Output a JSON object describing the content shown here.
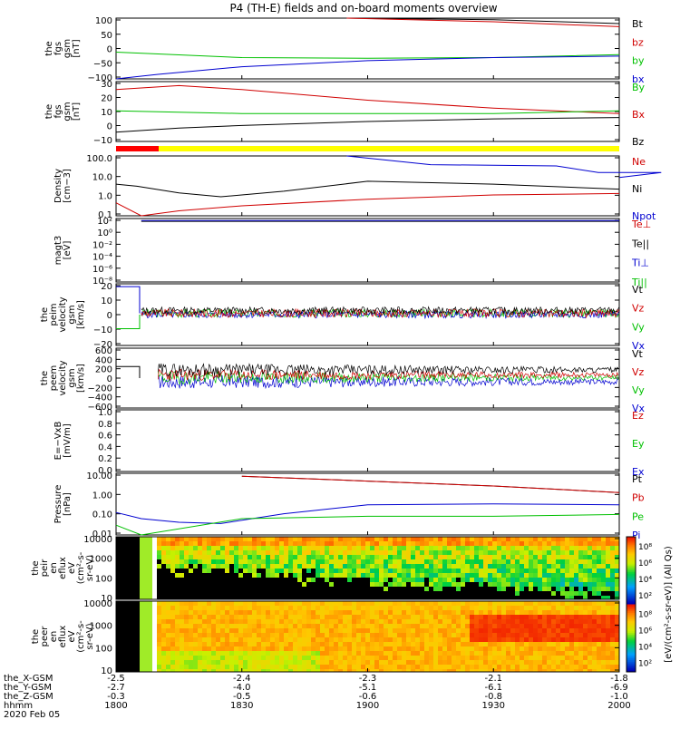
{
  "title": "P4 (TH-E) fields and on-board moments overview",
  "colors": {
    "black": "#000000",
    "red": "#d00000",
    "green": "#00c000",
    "blue": "#0000d0",
    "yellow": "#ffff00",
    "barRed": "#ff0000"
  },
  "panels": [
    {
      "id": "fgs-gsm",
      "ylabel": [
        "the",
        "fgs",
        "gsm",
        "[nT]"
      ],
      "yticks": [
        "100",
        "50",
        "0",
        "−50",
        "−100"
      ],
      "legend": [
        {
          "text": "Bt",
          "color": "black"
        },
        {
          "text": "bz",
          "color": "red"
        },
        {
          "text": "by",
          "color": "green"
        },
        {
          "text": "bx",
          "color": "blue"
        }
      ]
    },
    {
      "id": "fgs-gse",
      "ylabel": [
        "the",
        "fgs",
        "gsm",
        "[nT]"
      ],
      "yticks": [
        "30",
        "20",
        "10",
        "0",
        "−10"
      ],
      "legend": [
        {
          "text": "By",
          "color": "green"
        },
        {
          "text": "Bx",
          "color": "red"
        },
        {
          "text": "Bz",
          "color": "black"
        }
      ]
    },
    {
      "id": "density",
      "ylabel": [
        "Density",
        "[cm−3]"
      ],
      "yticks": [
        "100.0",
        "10.0",
        "1.0",
        "0.1"
      ],
      "legend": [
        {
          "text": "Ne",
          "color": "red"
        },
        {
          "text": "Ni",
          "color": "black"
        },
        {
          "text": "Npot",
          "color": "blue"
        }
      ]
    },
    {
      "id": "temperature",
      "ylabel": [
        "magt3",
        "[eV]"
      ],
      "yticks": [
        "10²",
        "10⁰",
        "10⁻²",
        "10⁻⁴",
        "10⁻⁶",
        "10⁻⁸"
      ],
      "legend": [
        {
          "text": "Te⊥",
          "color": "red"
        },
        {
          "text": "Te||",
          "color": "black"
        },
        {
          "text": "Ti⊥",
          "color": "blue"
        },
        {
          "text": "Ti||",
          "color": "green"
        }
      ]
    },
    {
      "id": "peim-velocity",
      "ylabel": [
        "the",
        "peim",
        "velocity",
        "gsm",
        "[km/s]"
      ],
      "yticks": [
        "20",
        "10",
        "0",
        "−10",
        "−20"
      ],
      "legend": [
        {
          "text": "Vt",
          "color": "black"
        },
        {
          "text": "Vz",
          "color": "red"
        },
        {
          "text": "Vy",
          "color": "green"
        },
        {
          "text": "Vx",
          "color": "blue"
        }
      ]
    },
    {
      "id": "peem-velocity",
      "ylabel": [
        "the",
        "peem",
        "velocity",
        "gsm",
        "[km/s]"
      ],
      "yticks": [
        "600",
        "400",
        "200",
        "0",
        "−200",
        "−400",
        "−600"
      ],
      "legend": [
        {
          "text": "Vt",
          "color": "black"
        },
        {
          "text": "Vz",
          "color": "red"
        },
        {
          "text": "Vy",
          "color": "green"
        },
        {
          "text": "Vx",
          "color": "blue"
        }
      ]
    },
    {
      "id": "efield",
      "ylabel": [
        "E=−VxB",
        "[mV/m]"
      ],
      "yticks": [
        "1.0",
        "0.8",
        "0.6",
        "0.4",
        "0.2",
        "0.0"
      ],
      "legend": [
        {
          "text": "Ez",
          "color": "red"
        },
        {
          "text": "Ey",
          "color": "green"
        },
        {
          "text": "Ex",
          "color": "blue"
        }
      ]
    },
    {
      "id": "pressure",
      "ylabel": [
        "Pressure",
        "[nPa]"
      ],
      "yticks": [
        "10.00",
        "1.00",
        "0.10",
        "0.01"
      ],
      "legend": [
        {
          "text": "Pt",
          "color": "black"
        },
        {
          "text": "Pb",
          "color": "red"
        },
        {
          "text": "Pe",
          "color": "green"
        },
        {
          "text": "Pi",
          "color": "blue"
        }
      ]
    },
    {
      "id": "peir-spec",
      "ylabel": [
        "the",
        "peir",
        "en",
        "eflux",
        "eV",
        "(cm²-s-",
        "sr-eV)"
      ],
      "yticks": [
        "10000",
        "1000",
        "100",
        "10"
      ]
    },
    {
      "id": "peer-spec",
      "ylabel": [
        "the",
        "peer",
        "en",
        "eflux",
        "eV",
        "(cm²-s-",
        "sr-eV)"
      ],
      "yticks": [
        "10000",
        "1000",
        "100",
        "10"
      ]
    }
  ],
  "colorbar": {
    "label": "[eV/(cm²-s-sr-eV)] (All Qs)",
    "ticks_top": [
      "10⁸",
      "10⁶",
      "10⁴",
      "10²"
    ],
    "ticks_bottom": [
      "10⁸",
      "10⁶",
      "10⁴",
      "10²"
    ]
  },
  "xaxis": {
    "row_labels": [
      "the_X-GSM",
      "the_Y-GSM",
      "the_Z-GSM",
      "hhmm",
      "2020 Feb 05"
    ],
    "columns": [
      {
        "x": "-2.5",
        "y": "-2.7",
        "z": "-0.3",
        "hhmm": "1800"
      },
      {
        "x": "-2.4",
        "y": "-4.0",
        "z": "-0.5",
        "hhmm": "1830"
      },
      {
        "x": "-2.3",
        "y": "-5.1",
        "z": "-0.6",
        "hhmm": "1900"
      },
      {
        "x": "-2.1",
        "y": "-6.1",
        "z": "-0.8",
        "hhmm": "1930"
      },
      {
        "x": "-1.8",
        "y": "-6.9",
        "z": "-1.0",
        "hhmm": "2000"
      }
    ]
  },
  "chart_data": {
    "type": "line",
    "title": "P4 (TH-E) fields and on-board moments overview",
    "time_range": [
      "1800",
      "2000"
    ],
    "x_tick_labels": [
      "1800",
      "1830",
      "1900",
      "1930",
      "2000"
    ],
    "series": [
      {
        "panel": "fgs-gsm",
        "name": "Bt",
        "x": [
          1855,
          1930,
          2000
        ],
        "values": [
          110,
          95,
          82
        ]
      },
      {
        "panel": "fgs-gsm",
        "name": "bz",
        "x": [
          1855,
          1930,
          2000
        ],
        "values": [
          105,
          88,
          72
        ]
      },
      {
        "panel": "fgs-gsm",
        "name": "by",
        "x": [
          1800,
          1810,
          1830,
          1900,
          1930,
          2000
        ],
        "values": [
          -12,
          -18,
          -30,
          -32,
          -30,
          -20
        ]
      },
      {
        "panel": "fgs-gsm",
        "name": "bx",
        "x": [
          1800,
          1810,
          1830,
          1900,
          1930,
          2000
        ],
        "values": [
          -100,
          -85,
          -60,
          -40,
          -30,
          -25
        ]
      },
      {
        "panel": "fgs-gse",
        "name": "Bx",
        "x": [
          1800,
          1815,
          1830,
          1900,
          1930,
          2000
        ],
        "values": [
          24,
          27,
          24,
          16,
          10,
          6
        ]
      },
      {
        "panel": "fgs-gse",
        "name": "By",
        "x": [
          1800,
          1815,
          1830,
          1900,
          1930,
          2000
        ],
        "values": [
          8,
          7,
          6,
          6,
          6,
          8
        ]
      },
      {
        "panel": "fgs-gse",
        "name": "Bz",
        "x": [
          1800,
          1815,
          1830,
          1900,
          1930,
          2000
        ],
        "values": [
          -8,
          -5,
          -3,
          0,
          2,
          3
        ]
      },
      {
        "panel": "density",
        "name": "Ni",
        "x": [
          1800,
          1805,
          1815,
          1825,
          1840,
          1900,
          1930,
          2000
        ],
        "values": [
          4,
          3,
          1.2,
          0.7,
          1.5,
          6,
          4,
          2
        ]
      },
      {
        "panel": "density",
        "name": "Ne",
        "x": [
          1800,
          1806,
          1815,
          1830,
          1900,
          1930,
          2000
        ],
        "values": [
          0.3,
          0.05,
          0.1,
          0.2,
          0.5,
          0.9,
          1.1
        ]
      },
      {
        "panel": "density",
        "name": "Npot",
        "x": [
          1855,
          1915,
          1945,
          1955,
          1970,
          2000
        ],
        "values": [
          200,
          60,
          50,
          20,
          20,
          10
        ]
      },
      {
        "panel": "temperature",
        "name": "Te||",
        "x": [
          1806,
          2000
        ],
        "values": [
          300,
          300
        ]
      },
      {
        "panel": "temperature",
        "name": "Ti⊥",
        "x": [
          1806,
          2000
        ],
        "values": [
          400,
          400
        ]
      },
      {
        "panel": "pressure",
        "name": "Pt",
        "x": [
          1830,
          1900,
          1930,
          2000
        ],
        "values": [
          20,
          10,
          5,
          2
        ]
      },
      {
        "panel": "pressure",
        "name": "Pb",
        "x": [
          1830,
          1900,
          1930,
          2000
        ],
        "values": [
          20,
          10,
          5,
          2
        ]
      },
      {
        "panel": "pressure",
        "name": "Pi",
        "x": [
          1800,
          1806,
          1815,
          1825,
          1840,
          1900,
          1930,
          2000
        ],
        "values": [
          0.12,
          0.05,
          0.03,
          0.025,
          0.1,
          0.35,
          0.4,
          0.35
        ]
      },
      {
        "panel": "pressure",
        "name": "Pe",
        "x": [
          1800,
          1806,
          1830,
          1900,
          1930,
          2000
        ],
        "values": [
          0.02,
          0.004,
          0.05,
          0.07,
          0.07,
          0.09
        ]
      }
    ]
  }
}
